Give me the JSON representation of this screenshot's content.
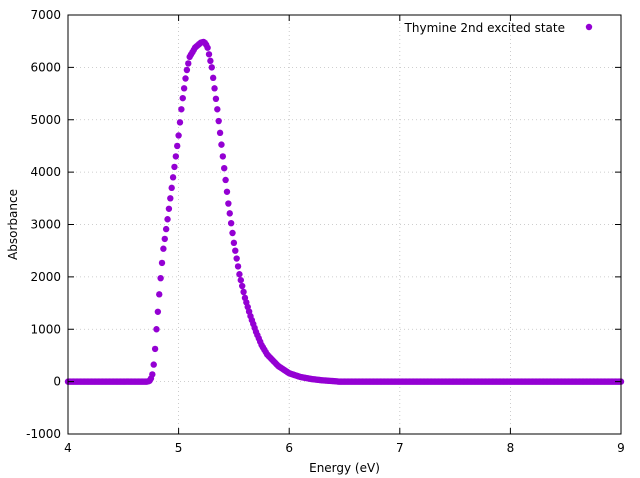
{
  "chart_data": {
    "type": "scatter",
    "title": "",
    "xlabel": "Energy (eV)",
    "ylabel": "Absorbance",
    "xlim": [
      4,
      9
    ],
    "ylim": [
      -1000,
      7000
    ],
    "x_ticks": [
      4,
      5,
      6,
      7,
      8,
      9
    ],
    "y_ticks": [
      -1000,
      0,
      1000,
      2000,
      3000,
      4000,
      5000,
      6000,
      7000
    ],
    "x_tick_labels": [
      "4",
      "5",
      "6",
      "7",
      "8",
      "9"
    ],
    "y_tick_labels": [
      "-1000",
      "0",
      "1000",
      "2000",
      "3000",
      "4000",
      "5000",
      "6000",
      "7000"
    ],
    "grid": true,
    "legend_position": "top-right",
    "series": [
      {
        "name": "Thymine 2nd excited state",
        "color": "#9400d3",
        "marker": "filled-circle",
        "points": [
          [
            4.0,
            0
          ],
          [
            4.72,
            0
          ],
          [
            4.74,
            20
          ],
          [
            4.76,
            100
          ],
          [
            4.78,
            400
          ],
          [
            4.8,
            1000
          ],
          [
            4.83,
            1800
          ],
          [
            4.86,
            2500
          ],
          [
            4.9,
            3100
          ],
          [
            4.95,
            3900
          ],
          [
            5.0,
            4700
          ],
          [
            5.03,
            5300
          ],
          [
            5.07,
            5900
          ],
          [
            5.1,
            6200
          ],
          [
            5.15,
            6380
          ],
          [
            5.2,
            6470
          ],
          [
            5.23,
            6490
          ],
          [
            5.26,
            6400
          ],
          [
            5.3,
            6000
          ],
          [
            5.35,
            5200
          ],
          [
            5.4,
            4300
          ],
          [
            5.45,
            3400
          ],
          [
            5.5,
            2650
          ],
          [
            5.55,
            2050
          ],
          [
            5.6,
            1600
          ],
          [
            5.65,
            1250
          ],
          [
            5.7,
            950
          ],
          [
            5.75,
            700
          ],
          [
            5.8,
            520
          ],
          [
            5.9,
            300
          ],
          [
            6.0,
            160
          ],
          [
            6.1,
            90
          ],
          [
            6.2,
            50
          ],
          [
            6.3,
            25
          ],
          [
            6.4,
            10
          ],
          [
            6.45,
            0
          ],
          [
            9.0,
            0
          ]
        ]
      }
    ]
  }
}
